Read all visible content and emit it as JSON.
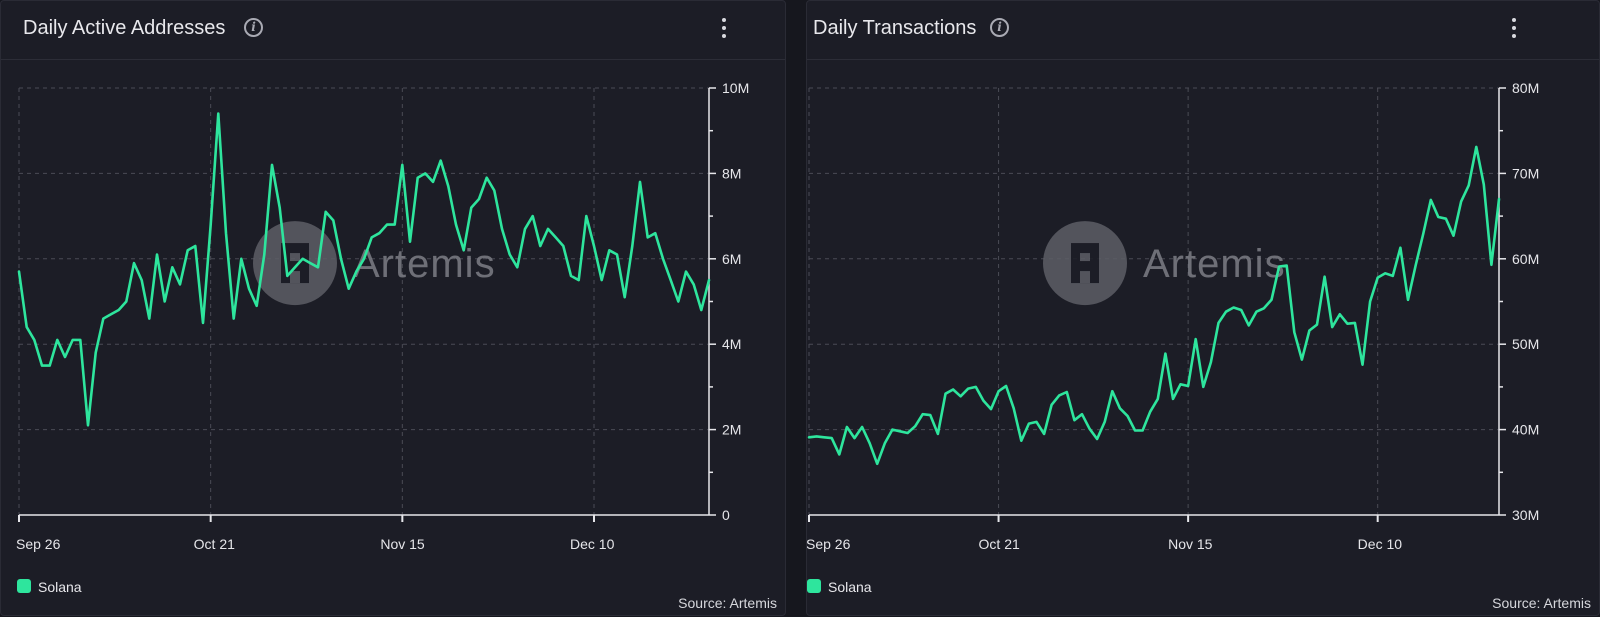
{
  "panels": [
    {
      "title": "Daily Active Addresses",
      "legend": "Solana",
      "source": "Source: Artemis",
      "watermark": "Artemis"
    },
    {
      "title": "Daily Transactions",
      "legend": "Solana",
      "source": "Source: Artemis",
      "watermark": "Artemis"
    }
  ],
  "colors": {
    "series": "#2ee59d",
    "grid": "#4a4b55",
    "axis": "#e6e6ea"
  },
  "icons": [
    "info-icon",
    "kebab-menu-icon",
    "artemis-logo-icon"
  ],
  "chart_data": [
    {
      "type": "line",
      "title": "Daily Active Addresses",
      "xlabel": "",
      "ylabel": "",
      "x_tick_labels": [
        "Sep 26",
        "Oct 21",
        "Nov 15",
        "Dec 10"
      ],
      "y_tick_labels": [
        "0",
        "2M",
        "4M",
        "6M",
        "8M",
        "10M"
      ],
      "y_ticks": [
        0,
        2000000,
        4000000,
        6000000,
        8000000,
        10000000
      ],
      "ylim": [
        0,
        10000000
      ],
      "grid": true,
      "legend_placement": "bottom-left",
      "y_axis_side": "right",
      "x_start": "2024-09-26",
      "series": [
        {
          "name": "Solana",
          "values": [
            5700000,
            4400000,
            4100000,
            3500000,
            3500000,
            4100000,
            3700000,
            4100000,
            4100000,
            2100000,
            3800000,
            4600000,
            4700000,
            4800000,
            5000000,
            5900000,
            5500000,
            4600000,
            6100000,
            5000000,
            5800000,
            5400000,
            6200000,
            6300000,
            4500000,
            6800000,
            9400000,
            6600000,
            4600000,
            6000000,
            5300000,
            4900000,
            6100000,
            8200000,
            7200000,
            5600000,
            5800000,
            6000000,
            5900000,
            5800000,
            7100000,
            6900000,
            6000000,
            5300000,
            5700000,
            6000000,
            6500000,
            6600000,
            6800000,
            6800000,
            8200000,
            6400000,
            7900000,
            8000000,
            7800000,
            8300000,
            7700000,
            6800000,
            6200000,
            7200000,
            7400000,
            7900000,
            7600000,
            6700000,
            6100000,
            5800000,
            6700000,
            7000000,
            6300000,
            6700000,
            6500000,
            6300000,
            5600000,
            5500000,
            7000000,
            6300000,
            5500000,
            6200000,
            6100000,
            5100000,
            6300000,
            7800000,
            6500000,
            6600000,
            6000000,
            5500000,
            5000000,
            5700000,
            5400000,
            4800000,
            5500000
          ]
        }
      ]
    },
    {
      "type": "line",
      "title": "Daily Transactions",
      "xlabel": "",
      "ylabel": "",
      "x_tick_labels": [
        "Sep 26",
        "Oct 21",
        "Nov 15",
        "Dec 10"
      ],
      "y_tick_labels": [
        "30M",
        "40M",
        "50M",
        "60M",
        "70M",
        "80M"
      ],
      "y_ticks": [
        30000000,
        40000000,
        50000000,
        60000000,
        70000000,
        80000000
      ],
      "ylim": [
        30000000,
        80000000
      ],
      "grid": true,
      "legend_placement": "bottom-left",
      "y_axis_side": "right",
      "x_start": "2024-09-26",
      "series": [
        {
          "name": "Solana",
          "values": [
            39100000,
            39200000,
            39100000,
            39000000,
            37100000,
            40300000,
            39000000,
            40300000,
            38400000,
            36000000,
            38400000,
            40000000,
            39800000,
            39600000,
            40400000,
            41800000,
            41700000,
            39500000,
            44200000,
            44700000,
            43900000,
            44800000,
            45000000,
            43400000,
            42400000,
            44500000,
            45100000,
            42500000,
            38700000,
            40700000,
            40900000,
            39500000,
            42900000,
            44000000,
            44400000,
            41100000,
            41800000,
            40100000,
            38900000,
            40900000,
            44500000,
            42500000,
            41600000,
            39900000,
            39900000,
            42100000,
            43600000,
            48900000,
            43600000,
            45300000,
            45100000,
            50600000,
            45000000,
            47900000,
            52500000,
            53800000,
            54300000,
            54000000,
            52200000,
            53800000,
            54200000,
            55200000,
            59100000,
            59200000,
            51400000,
            48200000,
            51600000,
            52300000,
            57900000,
            52000000,
            53500000,
            52400000,
            52500000,
            47600000,
            55000000,
            57800000,
            58300000,
            58000000,
            61300000,
            55200000,
            59200000,
            62900000,
            66900000,
            64900000,
            64700000,
            62700000,
            66700000,
            68600000,
            73100000,
            68700000,
            59300000,
            67000000
          ]
        }
      ]
    }
  ]
}
